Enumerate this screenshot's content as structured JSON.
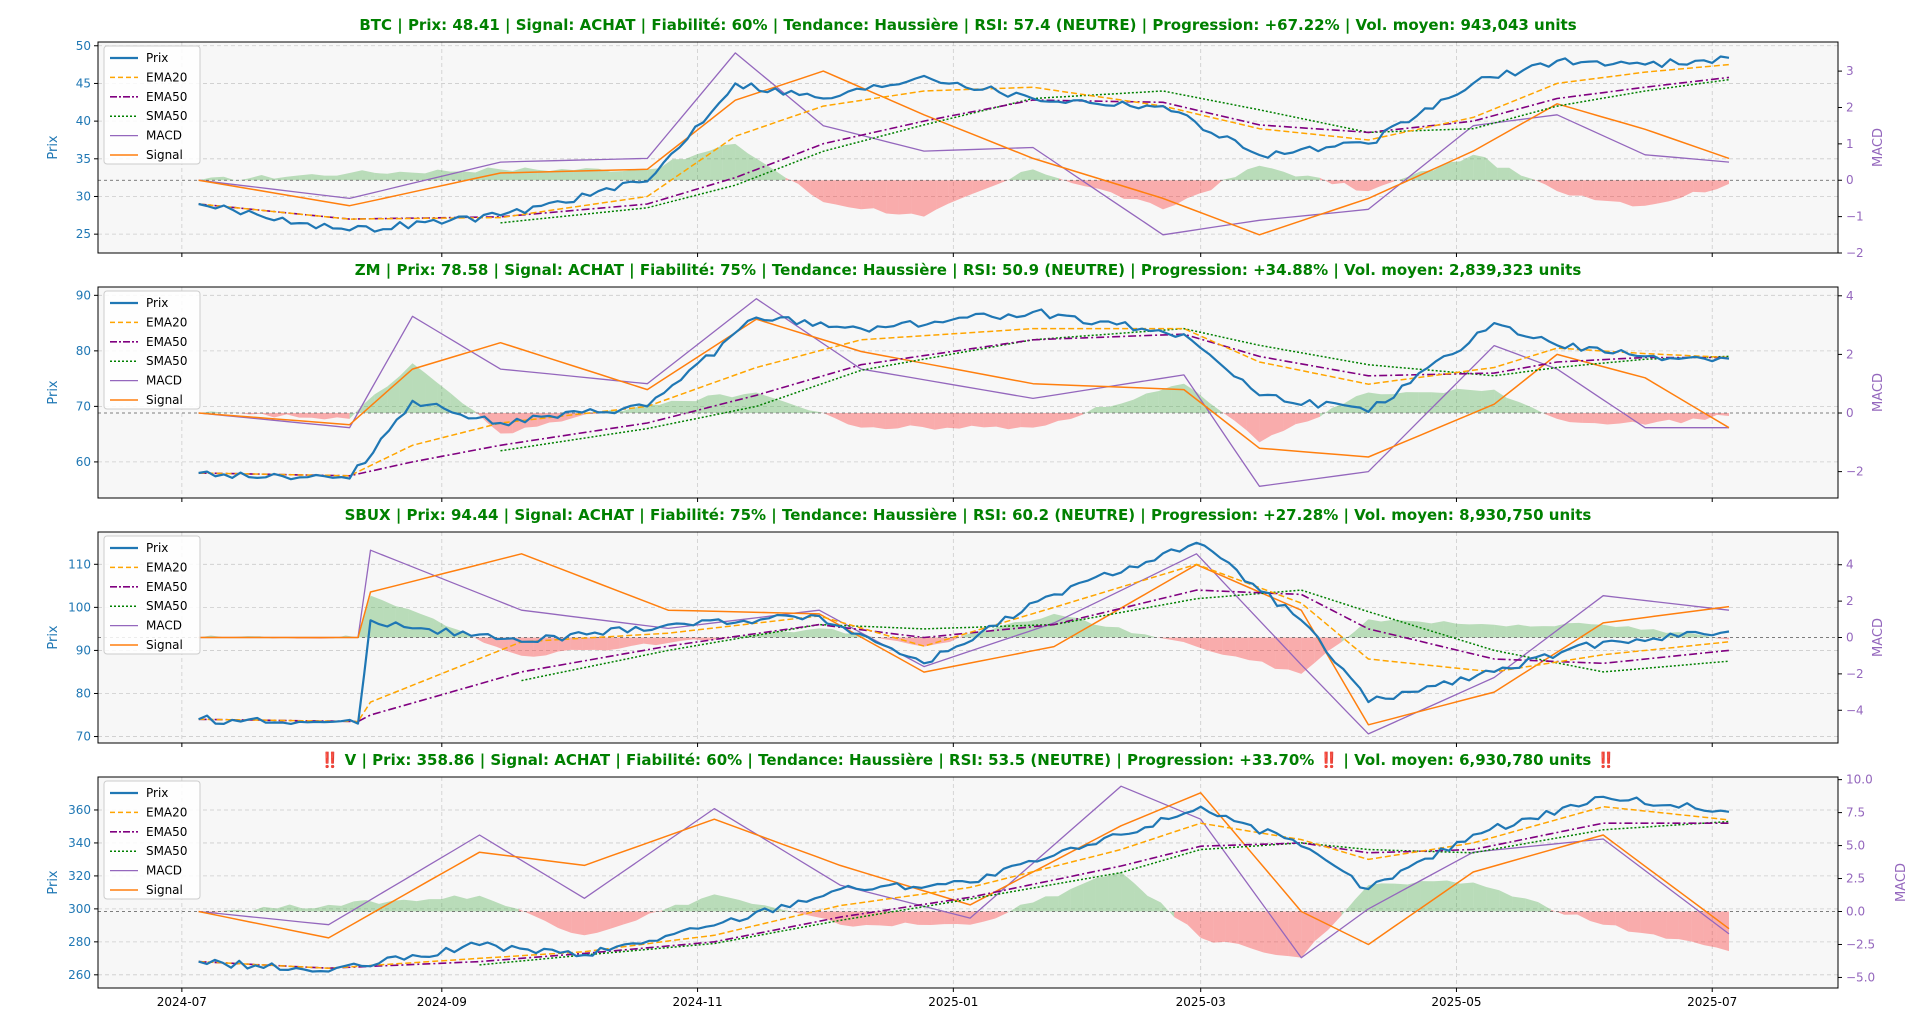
{
  "figure": {
    "x_ticks": [
      "2024-07",
      "2024-09",
      "2024-11",
      "2025-01",
      "2025-03",
      "2025-05",
      "2025-07"
    ],
    "x_range": [
      "2024-06-11",
      "2025-07-31"
    ],
    "colors": {
      "price": "#1f77b4",
      "ema20": "#ffa500",
      "ema50": "#800080",
      "sma50": "#008000",
      "macd": "#9467bd",
      "signal": "#ff7f0e",
      "hist_pos": "#2ca02c",
      "hist_neg": "#ff0000",
      "title": "#008000",
      "axis_price": "#1f77b4",
      "axis_macd": "#9467bd"
    }
  },
  "chart_data": [
    {
      "type": "line",
      "title": "BTC | Prix: 48.41 | Signal: ACHAT  | Fiabilité: 60% | Tendance: Haussière | RSI: 57.4 (NEUTRE) | Progression: +67.22%  | Vol. moyen: 943,043 units",
      "ylabel": "Prix",
      "y2label": "MACD",
      "ylim": [
        22.5,
        50.5
      ],
      "y2lim": [
        -2.0,
        3.8
      ],
      "yticks": [
        "25",
        "30",
        "35",
        "40",
        "45",
        "50"
      ],
      "y2ticks": [
        "−2",
        "−1",
        "0",
        "1",
        "2",
        "3"
      ],
      "legend": [
        "Prix",
        "EMA20",
        "EMA50",
        "SMA50",
        "MACD",
        "Signal"
      ],
      "legend_position": "upper-left",
      "grid": true,
      "x": [
        "2024-07-05",
        "2024-08-10",
        "2024-09-15",
        "2024-10-20",
        "2024-11-10",
        "2024-12-01",
        "2024-12-25",
        "2025-01-20",
        "2025-02-20",
        "2025-03-15",
        "2025-04-10",
        "2025-05-05",
        "2025-05-25",
        "2025-06-15",
        "2025-07-05"
      ],
      "series": [
        {
          "name": "Prix",
          "values": [
            29,
            25.5,
            27.5,
            32,
            45,
            43,
            46,
            43,
            42,
            35.5,
            37,
            45,
            48,
            47.5,
            48.4
          ]
        },
        {
          "name": "EMA20",
          "values": [
            29,
            27,
            27.2,
            30,
            38,
            42,
            44,
            44.5,
            42,
            39,
            37.5,
            40.5,
            45,
            46.5,
            47.5
          ]
        },
        {
          "name": "EMA50",
          "values": [
            29,
            27,
            27.3,
            29,
            32.5,
            37,
            40,
            42.8,
            42.5,
            39.5,
            38.5,
            40,
            43,
            44.5,
            45.8
          ]
        },
        {
          "name": "SMA50",
          "values": [
            null,
            null,
            26.5,
            28.5,
            31.5,
            36,
            39.5,
            43,
            44,
            41.5,
            38.5,
            39,
            42,
            44,
            45.5
          ]
        },
        {
          "name": "MACD",
          "values": [
            0,
            -0.5,
            0.5,
            0.6,
            3.5,
            1.5,
            0.8,
            0.9,
            -1.5,
            -1.1,
            -0.8,
            1.5,
            1.8,
            0.7,
            0.5
          ]
        },
        {
          "name": "Signal",
          "values": [
            0,
            -0.7,
            0.2,
            0.3,
            2.2,
            3.0,
            1.8,
            0.6,
            -0.5,
            -1.5,
            -0.5,
            0.8,
            2.1,
            1.4,
            0.6
          ]
        },
        {
          "name": "Histogram",
          "values": [
            0,
            0.2,
            0.3,
            0.3,
            1.0,
            -0.6,
            -1.0,
            0.3,
            -0.8,
            0.4,
            -0.3,
            0.7,
            -0.3,
            -0.7,
            -0.1
          ]
        }
      ]
    },
    {
      "type": "line",
      "title": "ZM | Prix: 78.58 | Signal: ACHAT  | Fiabilité: 75% | Tendance: Haussière | RSI: 50.9 (NEUTRE) | Progression: +34.88%  | Vol. moyen: 2,839,323 units",
      "ylabel": "Prix",
      "y2label": "MACD",
      "ylim": [
        53.5,
        91.5
      ],
      "y2lim": [
        -2.9,
        4.3
      ],
      "yticks": [
        "60",
        "70",
        "80",
        "90"
      ],
      "y2ticks": [
        "−2",
        "0",
        "2",
        "4"
      ],
      "legend": [
        "Prix",
        "EMA20",
        "EMA50",
        "SMA50",
        "MACD",
        "Signal"
      ],
      "legend_position": "upper-left",
      "grid": true,
      "x": [
        "2024-07-05",
        "2024-08-10",
        "2024-08-25",
        "2024-09-15",
        "2024-10-20",
        "2024-11-15",
        "2024-12-10",
        "2025-01-20",
        "2025-02-25",
        "2025-03-15",
        "2025-04-10",
        "2025-05-10",
        "2025-05-25",
        "2025-06-15",
        "2025-07-05"
      ],
      "series": [
        {
          "name": "Prix",
          "values": [
            58,
            57,
            71,
            67,
            70,
            86,
            84,
            87,
            83,
            72,
            69,
            85,
            81,
            79,
            78.6
          ]
        },
        {
          "name": "EMA20",
          "values": [
            58,
            57.5,
            63,
            67,
            70,
            77,
            82,
            84,
            84,
            78,
            74,
            77,
            80.5,
            79.5,
            78.8
          ]
        },
        {
          "name": "EMA50",
          "values": [
            58,
            57.5,
            60,
            63,
            67,
            72,
            77.5,
            82,
            83,
            79,
            75.5,
            76,
            78,
            78.8,
            78.8
          ]
        },
        {
          "name": "SMA50",
          "values": [
            null,
            null,
            null,
            62,
            66,
            70,
            76.5,
            82,
            84,
            81,
            77.5,
            75.5,
            77,
            78.5,
            79
          ]
        },
        {
          "name": "MACD",
          "values": [
            0,
            -0.5,
            3.3,
            1.5,
            1.0,
            3.9,
            1.5,
            0.5,
            1.3,
            -2.5,
            -2.0,
            2.3,
            1.5,
            -0.5,
            -0.5
          ]
        },
        {
          "name": "Signal",
          "values": [
            0,
            -0.4,
            1.5,
            2.4,
            0.8,
            3.2,
            2.1,
            1.0,
            0.8,
            -1.2,
            -1.5,
            0.3,
            2.0,
            1.2,
            -0.5
          ]
        },
        {
          "name": "Histogram",
          "values": [
            0,
            -0.2,
            1.7,
            -0.7,
            0.3,
            0.7,
            -0.5,
            -0.5,
            1.0,
            -1.0,
            0.7,
            0.8,
            -0.2,
            -0.4,
            -0.1
          ]
        }
      ]
    },
    {
      "type": "line",
      "title": "SBUX | Prix: 94.44 | Signal: ACHAT  | Fiabilité: 75% | Tendance: Haussière | RSI: 60.2 (NEUTRE) | Progression: +27.28%  | Vol. moyen: 8,930,750 units",
      "ylabel": "Prix",
      "y2label": "MACD",
      "ylim": [
        68.5,
        117.5
      ],
      "y2lim": [
        -5.8,
        5.8
      ],
      "yticks": [
        "70",
        "80",
        "90",
        "100",
        "110"
      ],
      "y2ticks": [
        "−4",
        "−2",
        "0",
        "2",
        "4"
      ],
      "legend": [
        "Prix",
        "EMA20",
        "EMA50",
        "SMA50",
        "MACD",
        "Signal"
      ],
      "legend_position": "upper-left",
      "grid": true,
      "x": [
        "2024-07-05",
        "2024-08-12",
        "2024-08-15",
        "2024-09-20",
        "2024-10-25",
        "2024-11-30",
        "2024-12-25",
        "2025-01-25",
        "2025-02-28",
        "2025-03-25",
        "2025-04-10",
        "2025-05-10",
        "2025-06-05",
        "2025-07-05"
      ],
      "series": [
        {
          "name": "Prix",
          "values": [
            74,
            73,
            97,
            92,
            96,
            98,
            87,
            103,
            115,
            97,
            78,
            85,
            92,
            94.4
          ]
        },
        {
          "name": "EMA20",
          "values": [
            74,
            73.5,
            78,
            92,
            94,
            98,
            91,
            100,
            110,
            101,
            88,
            85,
            89,
            92
          ]
        },
        {
          "name": "EMA50",
          "values": [
            74,
            73.5,
            75,
            85,
            91,
            96,
            93,
            96,
            104,
            103,
            95,
            88,
            87,
            90
          ]
        },
        {
          "name": "SMA50",
          "values": [
            null,
            null,
            null,
            83,
            90,
            96,
            95,
            96,
            102,
            104,
            99,
            90,
            85,
            87.5
          ]
        },
        {
          "name": "MACD",
          "values": [
            0,
            0,
            4.8,
            1.5,
            0.5,
            1.5,
            -1.6,
            0.8,
            4.6,
            -1.5,
            -5.3,
            -2.2,
            2.3,
            1.5
          ]
        },
        {
          "name": "Signal",
          "values": [
            0,
            0,
            2.5,
            4.6,
            1.5,
            1.3,
            -1.9,
            -0.5,
            4.0,
            1.5,
            -4.8,
            -3.0,
            0.8,
            1.7
          ]
        },
        {
          "name": "Histogram",
          "values": [
            0,
            0,
            2.3,
            -1.0,
            -0.3,
            0.5,
            -0.5,
            1.3,
            -0.5,
            -2.0,
            1.0,
            0.7,
            0.7,
            -0.1
          ]
        }
      ]
    },
    {
      "type": "line",
      "title": "‼️ V | Prix: 358.86 | Signal: ACHAT  | Fiabilité: 60% | Tendance: Haussière | RSI: 53.5 (NEUTRE) | Progression: +33.70%  ‼️ | Vol. moyen: 6,930,780 units  ‼️",
      "ylabel": "Prix",
      "y2label": "MACD",
      "ylim": [
        252,
        380
      ],
      "y2lim": [
        -5.8,
        10.2
      ],
      "yticks": [
        "260",
        "280",
        "300",
        "320",
        "340",
        "360"
      ],
      "y2ticks": [
        "−5.0",
        "−2.5",
        "0.0",
        "2.5",
        "5.0",
        "7.5",
        "10.0"
      ],
      "legend": [
        "Prix",
        "EMA20",
        "EMA50",
        "SMA50",
        "MACD",
        "Signal"
      ],
      "legend_position": "upper-left",
      "grid": true,
      "x": [
        "2024-07-05",
        "2024-08-05",
        "2024-09-10",
        "2024-10-05",
        "2024-11-05",
        "2024-12-05",
        "2025-01-05",
        "2025-02-10",
        "2025-03-01",
        "2025-03-25",
        "2025-04-10",
        "2025-05-05",
        "2025-06-05",
        "2025-07-05"
      ],
      "series": [
        {
          "name": "Prix",
          "values": [
            268,
            262,
            278,
            272,
            290,
            312,
            316,
            345,
            362,
            338,
            312,
            345,
            368,
            358.9
          ]
        },
        {
          "name": "EMA20",
          "values": [
            268,
            264,
            270,
            274,
            284,
            302,
            313,
            336,
            352,
            342,
            330,
            340,
            362,
            354
          ]
        },
        {
          "name": "EMA50",
          "values": [
            268,
            264,
            268,
            273,
            280,
            295,
            307,
            326,
            338,
            340,
            334,
            336,
            352,
            352
          ]
        },
        {
          "name": "SMA50",
          "values": [
            null,
            null,
            266,
            272,
            279,
            293,
            306,
            322,
            336,
            340,
            336,
            334,
            348,
            353
          ]
        },
        {
          "name": "MACD",
          "values": [
            0,
            -1.0,
            5.8,
            1.0,
            7.8,
            2.0,
            -0.5,
            9.5,
            7.0,
            -3.5,
            0.2,
            4.5,
            5.5,
            -1.7
          ]
        },
        {
          "name": "Signal",
          "values": [
            0,
            -2.0,
            4.5,
            3.5,
            7.0,
            3.5,
            0.5,
            6.5,
            9.0,
            0.0,
            -2.5,
            3.0,
            5.8,
            -1.3
          ]
        },
        {
          "name": "Histogram",
          "values": [
            0,
            0.5,
            1.2,
            -1.8,
            1.3,
            -1.0,
            -1.0,
            3.0,
            -2.0,
            -3.5,
            2.0,
            2.2,
            -1.0,
            -3.0
          ]
        }
      ]
    }
  ]
}
